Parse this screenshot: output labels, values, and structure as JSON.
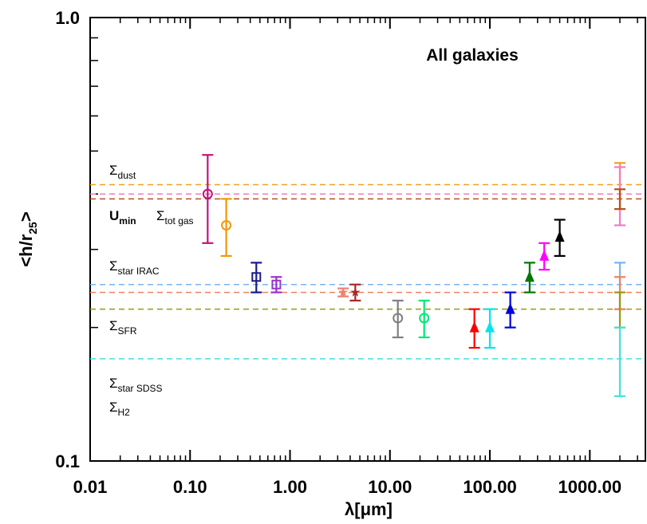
{
  "chart_data": {
    "type": "errorbar",
    "title": "All galaxies",
    "xlabel": "λ[μm]",
    "ylabel": {
      "main": "<h/r",
      "sub": "25",
      "end": ">"
    },
    "xscale": "log",
    "yscale": "log",
    "xlim": [
      0.01,
      3600
    ],
    "ylim": [
      0.1,
      1
    ],
    "xticks": [
      0.01,
      {
        "value": 0.1,
        "label": "0.10"
      },
      {
        "value": 1,
        "label": "1.00"
      },
      {
        "value": 10,
        "label": "10.00"
      },
      {
        "value": 100,
        "label": "100.00"
      },
      {
        "value": 1000,
        "label": "1000.00"
      }
    ],
    "xminorticks": [
      0.02,
      0.03,
      0.04,
      0.05,
      0.06,
      0.07,
      0.08,
      0.09,
      0.2,
      0.3,
      0.4,
      0.5,
      0.6,
      0.7,
      0.8,
      0.9,
      2,
      3,
      4,
      5,
      6,
      7,
      8,
      9,
      20,
      30,
      40,
      50,
      60,
      70,
      80,
      90,
      200,
      300,
      400,
      500,
      600,
      700,
      800,
      900,
      2000,
      3000
    ],
    "yticks": [
      0.1,
      {
        "value": 1,
        "label": "1.0"
      }
    ],
    "yminorticks": [
      0.2,
      0.3,
      0.4,
      0.5,
      0.6,
      0.7,
      0.8,
      0.9
    ],
    "hlines": [
      {
        "value": 0.42,
        "color": "#f0a020"
      },
      {
        "value": 0.4,
        "color": "#f07ac8"
      },
      {
        "value": 0.39,
        "color": "#b8501c"
      },
      {
        "value": 0.25,
        "color": "#78b4f0"
      },
      {
        "value": 0.24,
        "color": "#f08060"
      },
      {
        "value": 0.22,
        "color": "#9a9a10"
      },
      {
        "value": 0.17,
        "color": "#40e0e0"
      }
    ],
    "labels": [
      {
        "symbol": "Σ",
        "sub": "dust"
      },
      {
        "symbol": "U",
        "sub": "min"
      },
      {
        "symbol": "Σ",
        "sub": "tot gas"
      },
      {
        "symbol": "Σ",
        "sub": "star IRAC"
      },
      {
        "symbol": "Σ",
        "sub": "SFR"
      },
      {
        "symbol": "Σ",
        "sub": "star SDSS"
      },
      {
        "symbol": "Σ",
        "sub": "H2"
      }
    ],
    "series": [
      {
        "color": "#c0147a",
        "marker": "circle",
        "x": [
          0.15
        ],
        "values": [
          0.4
        ],
        "errors": [
          0.09
        ]
      },
      {
        "color": "#f39800",
        "marker": "circle",
        "x": [
          0.23
        ],
        "values": [
          0.34
        ],
        "errors": [
          0.05
        ]
      },
      {
        "color": "#1a1a8c",
        "marker": "square",
        "x": [
          0.46
        ],
        "values": [
          0.26
        ],
        "errors": [
          0.02
        ]
      },
      {
        "color": "#9932cc",
        "marker": "square",
        "x": [
          0.73
        ],
        "values": [
          0.25
        ],
        "errors": [
          0.01
        ]
      },
      {
        "color": "#f08070",
        "marker": "star",
        "x": [
          3.4
        ],
        "values": [
          0.24
        ],
        "errors": [
          0.005
        ]
      },
      {
        "color": "#a52a2a",
        "marker": "star",
        "x": [
          4.5
        ],
        "values": [
          0.24
        ],
        "errors": [
          0.01
        ]
      },
      {
        "color": "#808080",
        "marker": "circle",
        "x": [
          12
        ],
        "values": [
          0.21
        ],
        "errors": [
          0.02
        ]
      },
      {
        "color": "#00e676",
        "marker": "circle",
        "x": [
          22
        ],
        "values": [
          0.21
        ],
        "errors": [
          0.02
        ]
      },
      {
        "color": "#ff0000",
        "marker": "triangle",
        "x": [
          70
        ],
        "values": [
          0.2
        ],
        "errors": [
          0.02
        ]
      },
      {
        "color": "#00e5ee",
        "marker": "triangle",
        "x": [
          100
        ],
        "values": [
          0.2
        ],
        "errors": [
          0.02
        ]
      },
      {
        "color": "#0000dd",
        "marker": "triangle",
        "x": [
          160
        ],
        "values": [
          0.22
        ],
        "errors": [
          0.02
        ]
      },
      {
        "color": "#007700",
        "marker": "triangle",
        "x": [
          250
        ],
        "values": [
          0.26
        ],
        "errors": [
          0.02
        ]
      },
      {
        "color": "#ff00ff",
        "marker": "triangle",
        "x": [
          350
        ],
        "values": [
          0.29
        ],
        "errors": [
          0.02
        ]
      },
      {
        "color": "#000000",
        "marker": "triangle",
        "x": [
          500
        ],
        "values": [
          0.32
        ],
        "errors": [
          0.03
        ]
      },
      {
        "color": "#f0a020",
        "marker": "none",
        "x": [
          2000
        ],
        "values": [
          0.42
        ],
        "errors": [
          0.05
        ]
      },
      {
        "color": "#f07ac8",
        "marker": "none",
        "x": [
          2000
        ],
        "values": [
          0.4
        ],
        "errors": [
          0.06
        ]
      },
      {
        "color": "#b8501c",
        "marker": "none",
        "x": [
          2000
        ],
        "values": [
          0.39
        ],
        "errors": [
          0.02
        ]
      },
      {
        "color": "#78b4f0",
        "marker": "none",
        "x": [
          2000
        ],
        "values": [
          0.25
        ],
        "errors": [
          0.03
        ]
      },
      {
        "color": "#f08060",
        "marker": "none",
        "x": [
          2000
        ],
        "values": [
          0.24
        ],
        "errors": [
          0.02
        ]
      },
      {
        "color": "#9a9a10",
        "marker": "none",
        "x": [
          2000
        ],
        "values": [
          0.22
        ],
        "errors": [
          0.02
        ]
      },
      {
        "color": "#40e0e0",
        "marker": "none",
        "x": [
          2000
        ],
        "values": [
          0.17
        ],
        "errors": [
          0.03
        ]
      }
    ]
  }
}
